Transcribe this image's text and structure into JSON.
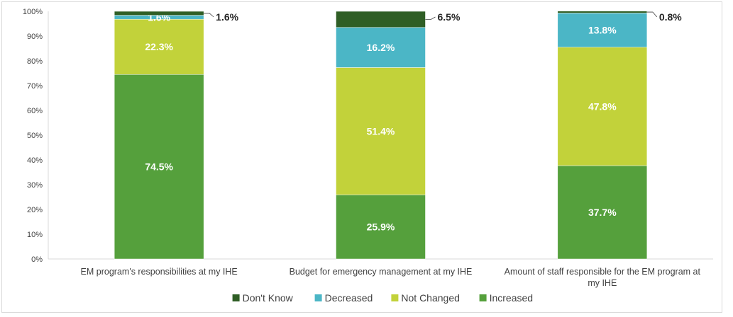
{
  "chart_data": {
    "type": "bar",
    "stacked": true,
    "percent": true,
    "categories": [
      [
        "EM program's responsibilities at my IHE"
      ],
      [
        "Budget for emergency management at my IHE"
      ],
      [
        "Amount of staff responsible for the EM program at",
        "my IHE"
      ]
    ],
    "series": [
      {
        "name": "Increased",
        "color": "#55a03c",
        "values": [
          74.5,
          25.9,
          37.7
        ]
      },
      {
        "name": "Not Changed",
        "color": "#c2d23a",
        "values": [
          22.3,
          51.4,
          47.8
        ]
      },
      {
        "name": "Decreased",
        "color": "#4bb6c6",
        "values": [
          1.6,
          16.2,
          13.8
        ]
      },
      {
        "name": "Don't Know",
        "color": "#2f5e25",
        "values": [
          1.6,
          6.5,
          0.8
        ]
      }
    ],
    "data_labels": {
      "Increased": [
        "74.5%",
        "25.9%",
        "37.7%"
      ],
      "Not Changed": [
        "22.3%",
        "51.4%",
        "47.8%"
      ],
      "Decreased": [
        "1.6%",
        "16.2%",
        "13.8%"
      ],
      "Don't Know": [
        "1.6%",
        "6.5%",
        "0.8%"
      ]
    },
    "y_ticks": [
      "0%",
      "10%",
      "20%",
      "30%",
      "40%",
      "50%",
      "60%",
      "70%",
      "80%",
      "90%",
      "100%"
    ],
    "ylim": [
      0,
      100
    ],
    "grid": false,
    "legend": {
      "position": "bottom",
      "order": [
        "Don't Know",
        "Decreased",
        "Not Changed",
        "Increased"
      ]
    },
    "title": "",
    "xlabel": "",
    "ylabel": ""
  }
}
